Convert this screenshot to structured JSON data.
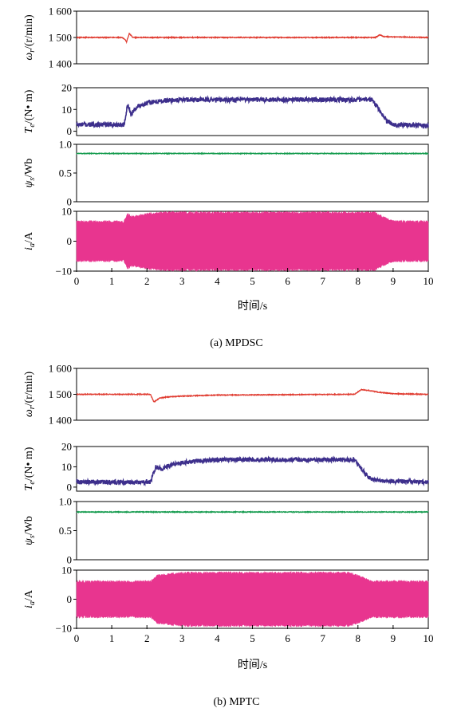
{
  "xlabel": "时间/s",
  "colors": {
    "speed": "#e03c31",
    "torque": "#3d2f8c",
    "flux": "#169c4f",
    "current": "#e8358f"
  },
  "chart_data": [
    {
      "type": "line",
      "caption": "(a) MPDSC",
      "xlim": [
        0,
        10
      ],
      "xticks": [
        "0",
        "1",
        "2",
        "3",
        "4",
        "5",
        "6",
        "7",
        "8",
        "9",
        "10"
      ],
      "panels": [
        {
          "key": "speed",
          "ylabel_main": "ω",
          "ylabel_sub": "r",
          "ylabel_rest": "/(r/min)",
          "ylim": [
            1400,
            1600
          ],
          "ytick_values": [
            1400,
            1500,
            1600
          ],
          "ytick_labels": [
            "1 400",
            "1 500",
            "1 600"
          ],
          "series": {
            "name": "",
            "x": [
              0,
              1.3,
              1.38,
              1.42,
              1.5,
              1.6,
              8.5,
              8.62,
              8.75,
              10
            ],
            "y": [
              1500,
              1500,
              1492,
              1483,
              1515,
              1500,
              1500,
              1510,
              1503,
              1500
            ]
          }
        },
        {
          "key": "torque",
          "ylabel_main": "T",
          "ylabel_sub": "e",
          "ylabel_rest": "/(N• m)",
          "ylim": [
            -2,
            20
          ],
          "ytick_values": [
            0,
            10,
            20
          ],
          "ytick_labels": [
            "0",
            "10",
            "20"
          ],
          "series": {
            "name": "",
            "x": [
              0,
              1.35,
              1.45,
              1.55,
              1.75,
              2.0,
              2.5,
              3.0,
              8.4,
              8.6,
              8.8,
              9.0,
              10
            ],
            "y": [
              3,
              3,
              12,
              8,
              11.5,
              13,
              14,
              14.5,
              14.5,
              10,
              5,
              3,
              2.5
            ]
          }
        },
        {
          "key": "flux",
          "ylabel_main": "ψ",
          "ylabel_sub": "s",
          "ylabel_rest": "/Wb",
          "ylim": [
            0,
            1.0
          ],
          "ytick_values": [
            0,
            0.5,
            1.0
          ],
          "ytick_labels": [
            "0",
            "0.5",
            "1.0"
          ],
          "series": {
            "name": "",
            "x": [
              0,
              10
            ],
            "y": [
              0.84,
              0.84
            ]
          }
        },
        {
          "key": "current",
          "ylabel_main": "i",
          "ylabel_sub": "a",
          "ylabel_rest": "/A",
          "ylim": [
            -10,
            10
          ],
          "ytick_values": [
            -10,
            0,
            10
          ],
          "ytick_labels": [
            "−10",
            "0",
            "10"
          ],
          "series": {
            "name": "",
            "x": [
              0,
              1.35,
              1.45,
              1.6,
              2.0,
              2.5,
              8.5,
              8.7,
              9.0,
              10
            ],
            "y": [
              6.5,
              6.5,
              9,
              8,
              9,
              9.5,
              9.5,
              8,
              6.5,
              6.5
            ]
          }
        }
      ]
    },
    {
      "type": "line",
      "caption": "(b) MPTC",
      "xlim": [
        0,
        10
      ],
      "xticks": [
        "0",
        "1",
        "2",
        "3",
        "4",
        "5",
        "6",
        "7",
        "8",
        "9",
        "10"
      ],
      "panels": [
        {
          "key": "speed",
          "ylabel_main": "ω",
          "ylabel_sub": "r",
          "ylabel_rest": "/(r/min)",
          "ylim": [
            1400,
            1600
          ],
          "ytick_values": [
            1400,
            1500,
            1600
          ],
          "ytick_labels": [
            "1 400",
            "1 500",
            "1 600"
          ],
          "series": {
            "name": "",
            "x": [
              0,
              2.1,
              2.2,
              2.35,
              2.6,
              3.0,
              4.0,
              7.9,
              8.1,
              8.3,
              8.6,
              9.0,
              10
            ],
            "y": [
              1500,
              1500,
              1470,
              1485,
              1490,
              1493,
              1497,
              1500,
              1518,
              1515,
              1508,
              1502,
              1500
            ]
          }
        },
        {
          "key": "torque",
          "ylabel_main": "T",
          "ylabel_sub": "e",
          "ylabel_rest": "/(N• m)",
          "ylim": [
            -2,
            20
          ],
          "ytick_values": [
            0,
            10,
            20
          ],
          "ytick_labels": [
            "0",
            "10",
            "20"
          ],
          "series": {
            "name": "",
            "x": [
              0,
              2.1,
              2.25,
              2.4,
              2.7,
              3.2,
              4.0,
              7.9,
              8.1,
              8.3,
              8.6,
              10
            ],
            "y": [
              2.5,
              2.5,
              10,
              9,
              11,
              12.5,
              13.5,
              13.5,
              9,
              5,
              3,
              2.5
            ]
          }
        },
        {
          "key": "flux",
          "ylabel_main": "ψ",
          "ylabel_sub": "s",
          "ylabel_rest": "/Wb",
          "ylim": [
            0,
            1.0
          ],
          "ytick_values": [
            0,
            0.5,
            1.0
          ],
          "ytick_labels": [
            "0",
            "0.5",
            "1.0"
          ],
          "series": {
            "name": "",
            "x": [
              0,
              10
            ],
            "y": [
              0.82,
              0.82
            ]
          }
        },
        {
          "key": "current",
          "ylabel_main": "i",
          "ylabel_sub": "a",
          "ylabel_rest": "/A",
          "ylim": [
            -10,
            10
          ],
          "ytick_values": [
            -10,
            0,
            10
          ],
          "ytick_labels": [
            "−10",
            "0",
            "10"
          ],
          "series": {
            "name": "",
            "x": [
              0,
              2.1,
              2.3,
              2.6,
              3.0,
              4.0,
              7.8,
              8.1,
              8.4,
              10
            ],
            "y": [
              6,
              6,
              8,
              8.5,
              9,
              9,
              9,
              7.5,
              6,
              6
            ]
          }
        }
      ]
    }
  ]
}
